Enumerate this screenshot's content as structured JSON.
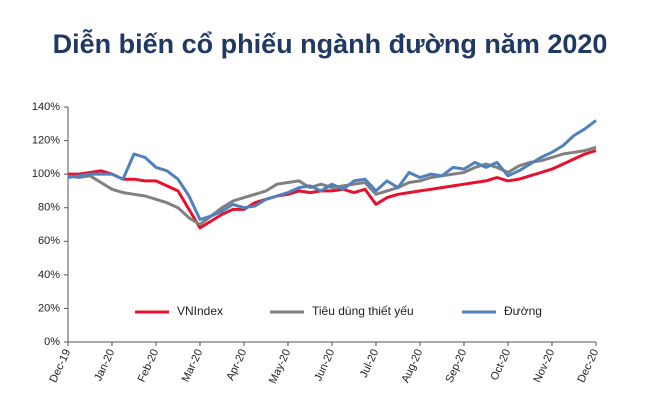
{
  "chart_data": {
    "type": "line",
    "title": "Diễn biến cổ phiếu ngành đường năm 2020",
    "categories": [
      "Dec-19",
      null,
      null,
      null,
      "Jan-20",
      null,
      null,
      null,
      "Feb-20",
      null,
      null,
      null,
      "Mar-20",
      null,
      null,
      null,
      "Apr-20",
      null,
      null,
      null,
      "May-20",
      null,
      null,
      null,
      "Jun-20",
      null,
      null,
      null,
      "Jul-20",
      null,
      null,
      null,
      "Aug-20",
      null,
      null,
      null,
      "Sep-20",
      null,
      null,
      null,
      "Oct-20",
      null,
      null,
      null,
      "Nov-20",
      null,
      null,
      null,
      "Dec-20"
    ],
    "series": [
      {
        "name": "VNIndex",
        "color": "#e8112d",
        "values": [
          100,
          100,
          101,
          102,
          100,
          97,
          97,
          96,
          96,
          93,
          90,
          79,
          68,
          72,
          76,
          79,
          79,
          83,
          85,
          87,
          88,
          90,
          89,
          90,
          90,
          91,
          89,
          91,
          82,
          86,
          88,
          89,
          90,
          91,
          92,
          93,
          94,
          95,
          96,
          98,
          96,
          97,
          99,
          101,
          103,
          106,
          109,
          112,
          114
        ]
      },
      {
        "name": "Tiêu dùng thiết yếu",
        "color": "#808080",
        "values": [
          99,
          98,
          99,
          95,
          91,
          89,
          88,
          87,
          85,
          83,
          80,
          74,
          70,
          75,
          80,
          84,
          86,
          88,
          90,
          94,
          95,
          96,
          92,
          94,
          92,
          93,
          94,
          95,
          88,
          90,
          92,
          95,
          96,
          98,
          99,
          100,
          101,
          104,
          106,
          104,
          101,
          105,
          107,
          108,
          110,
          112,
          113,
          114,
          116
        ]
      },
      {
        "name": "Đường",
        "color": "#4f81bd",
        "values": [
          98,
          99,
          100,
          100,
          100,
          97,
          112,
          110,
          104,
          102,
          97,
          87,
          73,
          75,
          78,
          82,
          80,
          81,
          85,
          87,
          89,
          92,
          93,
          90,
          94,
          91,
          96,
          97,
          90,
          96,
          92,
          101,
          98,
          100,
          99,
          104,
          103,
          107,
          104,
          107,
          99,
          102,
          106,
          110,
          113,
          117,
          123,
          127,
          132
        ]
      }
    ],
    "ylim": [
      0,
      140
    ],
    "yticks": [
      {
        "value": 0,
        "label": "0%"
      },
      {
        "value": 20,
        "label": "20%"
      },
      {
        "value": 40,
        "label": "40%"
      },
      {
        "value": 60,
        "label": "60%"
      },
      {
        "value": 80,
        "label": "80%"
      },
      {
        "value": 100,
        "label": "100%"
      },
      {
        "value": 120,
        "label": "120%"
      },
      {
        "value": 140,
        "label": "140%"
      }
    ],
    "grid": false,
    "legend": "lower center"
  }
}
